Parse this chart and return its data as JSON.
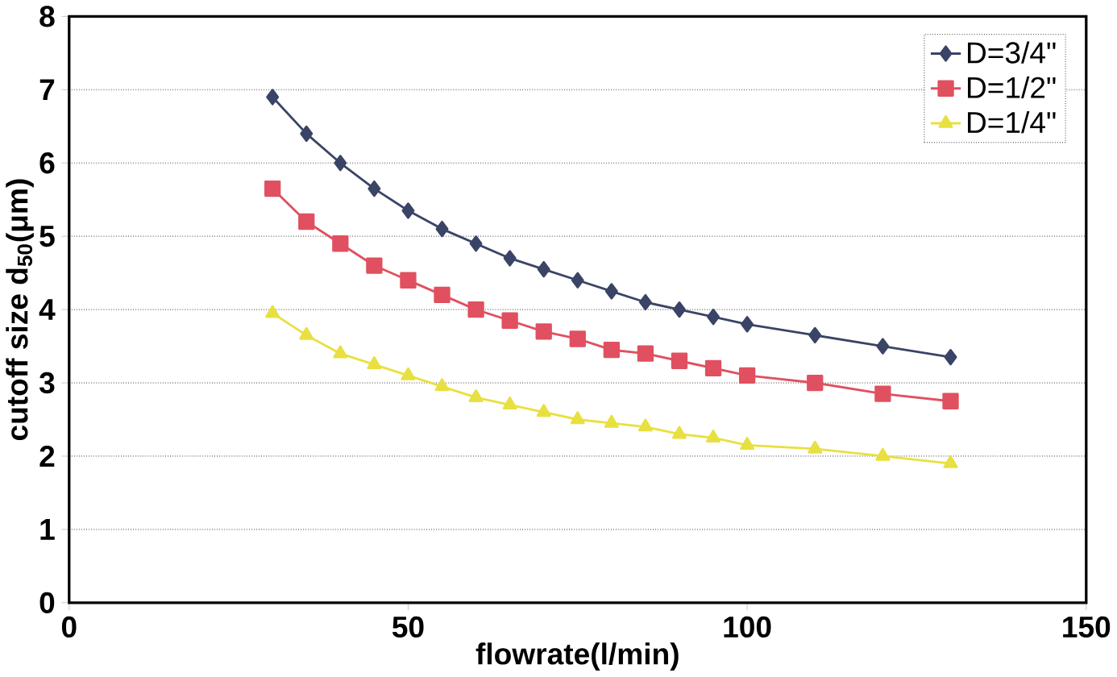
{
  "chart_data": {
    "type": "line",
    "xlabel": "flowrate(l/min)",
    "ylabel": "cutoff size d$_{50}$(μm)",
    "x": [
      30,
      35,
      40,
      45,
      50,
      55,
      60,
      65,
      70,
      75,
      80,
      85,
      90,
      95,
      100,
      110,
      120,
      130
    ],
    "series": [
      {
        "name": "D=3/4\"",
        "color": "#3a4466",
        "marker": "diamond",
        "values": [
          6.9,
          6.4,
          6.0,
          5.65,
          5.35,
          5.1,
          4.9,
          4.7,
          4.55,
          4.4,
          4.25,
          4.1,
          4.0,
          3.9,
          3.8,
          3.65,
          3.5,
          3.35
        ]
      },
      {
        "name": "D=1/2\"",
        "color": "#e05060",
        "marker": "square",
        "values": [
          5.65,
          5.2,
          4.9,
          4.6,
          4.4,
          4.2,
          4.0,
          3.85,
          3.7,
          3.6,
          3.45,
          3.4,
          3.3,
          3.2,
          3.1,
          3.0,
          2.85,
          2.75
        ]
      },
      {
        "name": "D=1/4\"",
        "color": "#e8e040",
        "marker": "triangle",
        "values": [
          3.95,
          3.65,
          3.4,
          3.25,
          3.1,
          2.95,
          2.8,
          2.7,
          2.6,
          2.5,
          2.45,
          2.4,
          2.3,
          2.25,
          2.15,
          2.1,
          2.0,
          1.9
        ]
      }
    ],
    "xlim": [
      0,
      150
    ],
    "xticks": [
      0,
      50,
      100,
      150
    ],
    "ylim": [
      0,
      8
    ],
    "yticks": [
      0,
      1,
      2,
      3,
      4,
      5,
      6,
      7,
      8
    ],
    "grid": "y",
    "legend": "top right"
  }
}
